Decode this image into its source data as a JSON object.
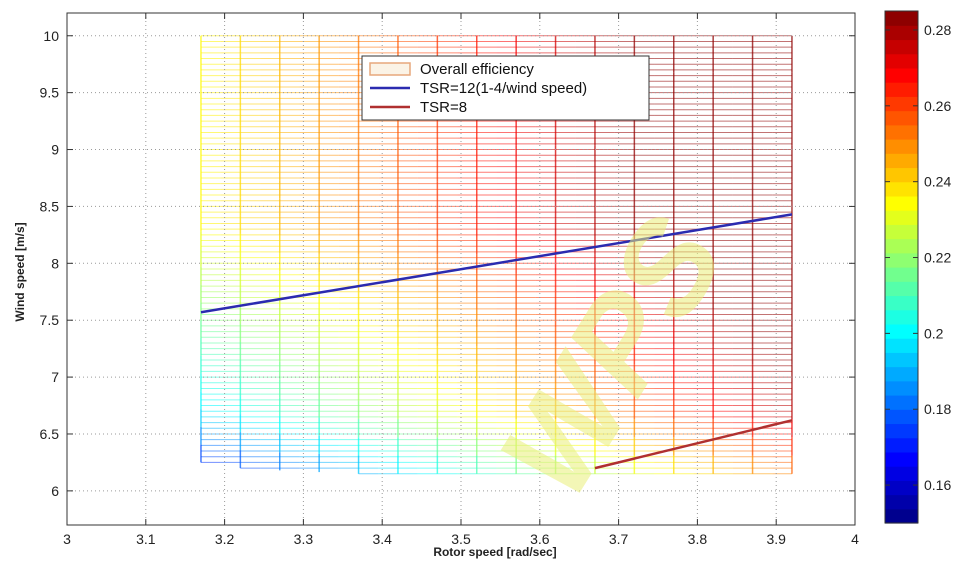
{
  "chart_data": {
    "type": "heatmap",
    "title": "",
    "xlabel": "Rotor speed [rad/sec]",
    "ylabel": "Wind speed [m/s]",
    "xlim": [
      3,
      4
    ],
    "ylim": [
      5.7,
      10.2
    ],
    "xticks": [
      "3",
      "3.1",
      "3.2",
      "3.3",
      "3.4",
      "3.5",
      "3.6",
      "3.7",
      "3.8",
      "3.9",
      "4"
    ],
    "yticks": [
      "6",
      "6.5",
      "7",
      "7.5",
      "8",
      "8.5",
      "9",
      "9.5",
      "10"
    ],
    "grid": true,
    "legend": {
      "placement": "top-center",
      "entries": [
        "Overall efficiency",
        "TSR=12(1-4/wind speed)",
        "TSR=8"
      ]
    },
    "surface": {
      "name": "Overall efficiency",
      "rotor_speed_range": [
        3.17,
        3.92
      ],
      "wind_speed_max": 10.0,
      "wind_speed_min_profile": {
        "x": [
          3.17,
          3.22,
          3.27,
          3.37,
          3.67,
          3.92
        ],
        "y": [
          6.25,
          6.2,
          6.18,
          6.15,
          6.15,
          6.15
        ]
      },
      "efficiency_min": 0.15,
      "efficiency_max": 0.285
    },
    "series": [
      {
        "name": "TSR=12(1-4/wind speed)",
        "color": "#2b2bb0",
        "x": [
          3.17,
          3.92
        ],
        "y": [
          7.57,
          8.43
        ]
      },
      {
        "name": "TSR=8",
        "color": "#b03030",
        "x": [
          3.67,
          3.92
        ],
        "y": [
          6.2,
          6.62
        ]
      }
    ],
    "colorbar": {
      "min": 0.15,
      "max": 0.285,
      "ticks": [
        "0.16",
        "0.18",
        "0.2",
        "0.22",
        "0.24",
        "0.26",
        "0.28"
      ]
    },
    "watermark": "WPS"
  }
}
